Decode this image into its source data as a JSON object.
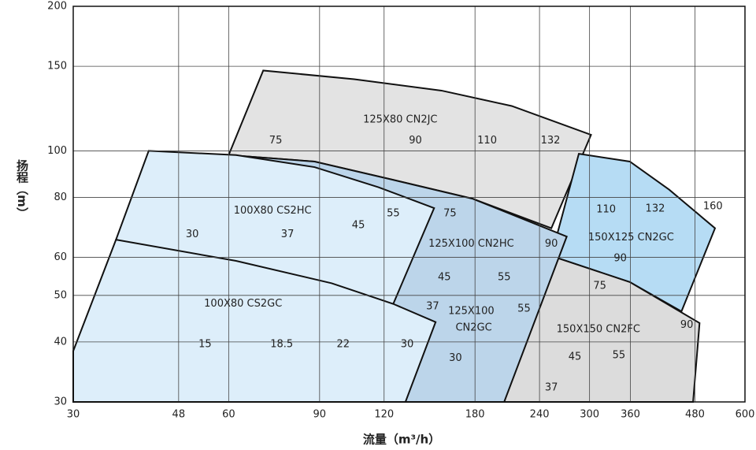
{
  "chart_data": {
    "type": "area",
    "x_label": "流量（m³/h）",
    "y_label": "扬程（m）",
    "log_x": true,
    "log_y": true,
    "grid": true,
    "xlim": [
      30,
      600
    ],
    "xticks": [
      30,
      48,
      60,
      90,
      120,
      180,
      240,
      300,
      360,
      480,
      600
    ],
    "ylim": [
      30,
      200
    ],
    "yticks": [
      30,
      40,
      50,
      60,
      80,
      100,
      150,
      200
    ],
    "regions": [
      {
        "color": "#e3e3e3",
        "points": [
          [
            60,
            98
          ],
          [
            70,
            147
          ],
          [
            105,
            141
          ],
          [
            155,
            133.5
          ],
          [
            212,
            124
          ],
          [
            302,
            108
          ],
          [
            253,
            69
          ],
          [
            178,
            79.5
          ],
          [
            125,
            87
          ],
          [
            88,
            95
          ]
        ],
        "labels": [
          {
            "text": "125X80 CN2JC",
            "x": 129,
            "y": 116
          },
          {
            "text": "75",
            "x": 74,
            "y": 105
          },
          {
            "text": "90",
            "x": 138,
            "y": 105
          },
          {
            "text": "110",
            "x": 190,
            "y": 105
          },
          {
            "text": "132",
            "x": 252,
            "y": 105
          }
        ]
      },
      {
        "color": "#b6dcf4",
        "points": [
          [
            286,
            98.6
          ],
          [
            359,
            95
          ],
          [
            428,
            83
          ],
          [
            525,
            69
          ],
          [
            452,
            46.3
          ],
          [
            359,
            53.3
          ],
          [
            253,
            60.4
          ]
        ],
        "labels": [
          {
            "text": "150X125 CN2GC",
            "x": 361,
            "y": 66
          },
          {
            "text": "110",
            "x": 323,
            "y": 75.4
          },
          {
            "text": "132",
            "x": 402,
            "y": 75.7
          },
          {
            "text": "160",
            "x": 520,
            "y": 76.6
          },
          {
            "text": "90",
            "x": 344,
            "y": 59.7
          },
          {
            "text": "75",
            "x": 314,
            "y": 52.3
          }
        ]
      },
      {
        "color": "#dcdcdc",
        "points": [
          [
            205,
            30
          ],
          [
            253,
            60.4
          ],
          [
            359,
            53.3
          ],
          [
            490,
            43.8
          ],
          [
            476,
            30
          ]
        ],
        "labels": [
          {
            "text": "150X150 CN2FC",
            "x": 312,
            "y": 42.5
          },
          {
            "text": "90",
            "x": 463,
            "y": 43.4
          },
          {
            "text": "45",
            "x": 281,
            "y": 37.2
          },
          {
            "text": "55",
            "x": 342,
            "y": 37.5
          },
          {
            "text": "37",
            "x": 253,
            "y": 32.1
          }
        ]
      },
      {
        "color": "#bcd5ea",
        "points": [
          [
            60,
            98
          ],
          [
            88,
            95
          ],
          [
            125,
            87
          ],
          [
            178,
            79.5
          ],
          [
            271,
            66.3
          ],
          [
            205,
            30
          ],
          [
            132,
            30
          ]
        ],
        "labels": [
          {
            "text": "125X100 CN2HC",
            "x": 177,
            "y": 64
          },
          {
            "text": "75",
            "x": 161,
            "y": 74
          },
          {
            "text": "90",
            "x": 253,
            "y": 64
          },
          {
            "text": "45",
            "x": 157,
            "y": 54.5
          },
          {
            "text": "55",
            "x": 205,
            "y": 54.5
          },
          {
            "text": "37",
            "x": 149,
            "y": 47.4
          },
          {
            "text": "125X100",
            "x": 177,
            "y": 46.3
          },
          {
            "text": "CN2GC",
            "x": 179,
            "y": 42.8
          },
          {
            "text": "30",
            "x": 165,
            "y": 37
          },
          {
            "text": "55",
            "x": 224,
            "y": 46.9
          }
        ]
      },
      {
        "color": "#ddeefa",
        "points": [
          [
            36.3,
            65.3
          ],
          [
            42,
            100
          ],
          [
            62,
            98
          ],
          [
            88,
            92.5
          ],
          [
            117,
            84
          ],
          [
            150,
            76
          ],
          [
            125,
            48
          ]
        ],
        "labels": [
          {
            "text": "100X80 CS2HC",
            "x": 73,
            "y": 75
          },
          {
            "text": "30",
            "x": 51,
            "y": 67
          },
          {
            "text": "37",
            "x": 78,
            "y": 67
          },
          {
            "text": "45",
            "x": 107,
            "y": 70
          },
          {
            "text": "55",
            "x": 125,
            "y": 74
          }
        ]
      },
      {
        "color": "#ddeefa",
        "points": [
          [
            30,
            38.3
          ],
          [
            36.3,
            65.3
          ],
          [
            62,
            59
          ],
          [
            95,
            53
          ],
          [
            125,
            48
          ],
          [
            151,
            44
          ],
          [
            132,
            30
          ],
          [
            30,
            30
          ]
        ],
        "labels": [
          {
            "text": "100X80 CS2GC",
            "x": 64,
            "y": 48
          },
          {
            "text": "15",
            "x": 54,
            "y": 39.5
          },
          {
            "text": "18.5",
            "x": 76,
            "y": 39.5
          },
          {
            "text": "22",
            "x": 100,
            "y": 39.5
          },
          {
            "text": "30",
            "x": 133,
            "y": 39.5
          }
        ]
      }
    ]
  }
}
